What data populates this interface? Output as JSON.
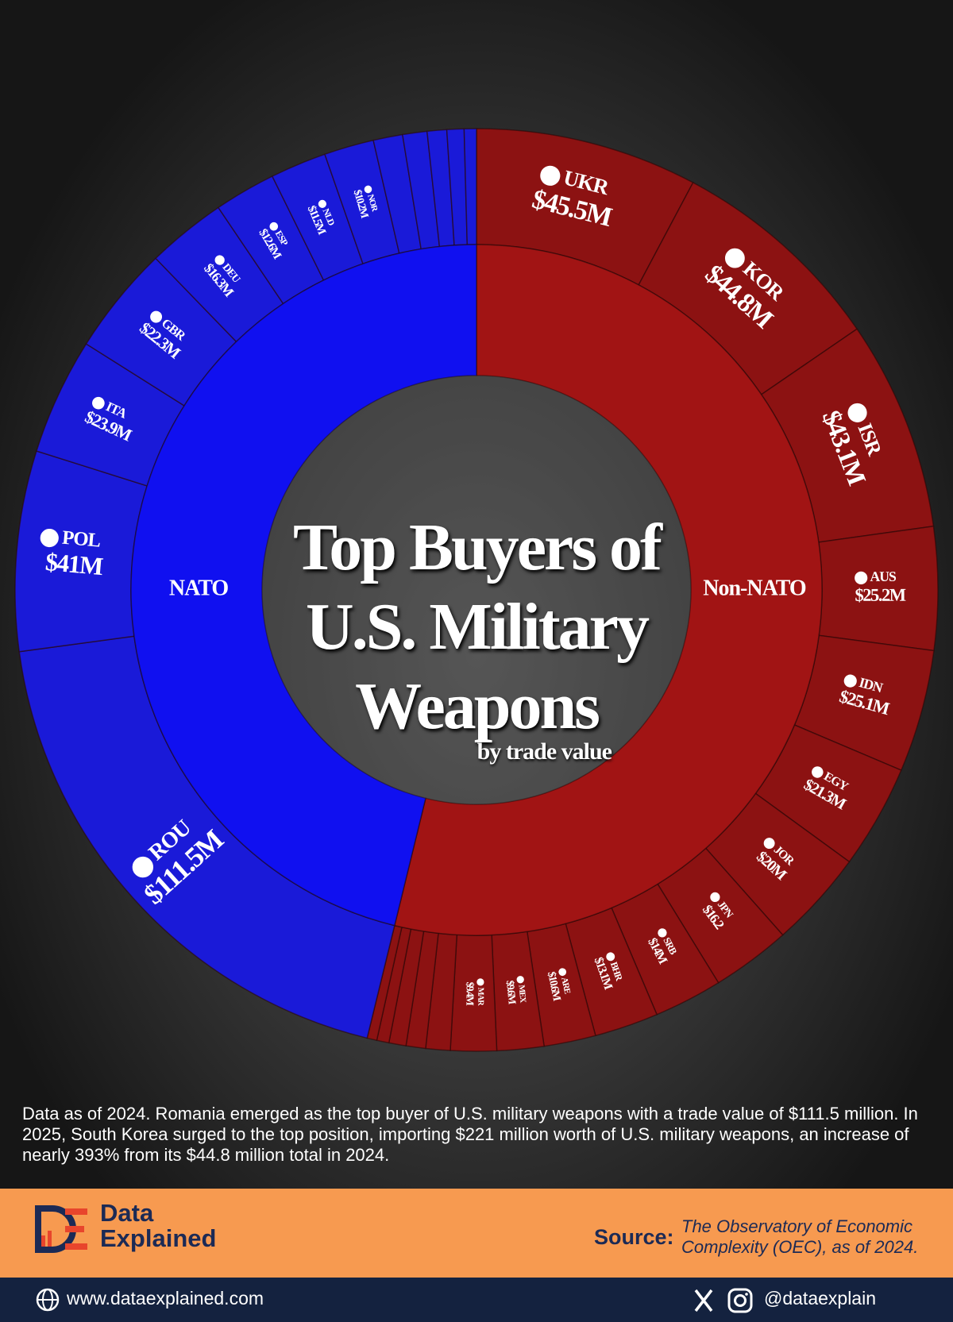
{
  "chart_data": {
    "type": "sunburst",
    "title": [
      "Top Buyers of",
      "U.S. Military",
      "Weapons"
    ],
    "subtitle": "by trade value",
    "series": [
      {
        "name": "Non-NATO",
        "color": "#8c1212",
        "inner_color": "#a11414",
        "categories": [
          "UKR",
          "KOR",
          "ISR",
          "AUS",
          "IDN",
          "EGY",
          "JOR",
          "JPN",
          "SRB",
          "BHR",
          "ARE",
          "MEX",
          "MAR",
          null,
          null,
          null,
          null,
          null
        ],
        "values": [
          45.5,
          44.8,
          43.1,
          25.2,
          25.1,
          21.3,
          20,
          16.2,
          14,
          13.1,
          10.6,
          9.6,
          9.4,
          5,
          4,
          3.5,
          2.5,
          2
        ],
        "value_labels": [
          "$45.5M",
          "$44.8M",
          "$43.1M",
          "$25.2M",
          "$25.1M",
          "$21.3M",
          "$20M",
          "$16.2",
          "$14M",
          "$13.1M",
          "$10.6M",
          "$9.6M",
          "$9.4M",
          null,
          null,
          null,
          null,
          null
        ]
      },
      {
        "name": "NATO",
        "color": "#1a1ad8",
        "inner_color": "#1010f0",
        "categories": [
          "ROU",
          "POL",
          "ITA",
          "GBR",
          "DEU",
          "ESP",
          "NLD",
          "NOR",
          null,
          null,
          null,
          null,
          null
        ],
        "values": [
          111.5,
          41,
          23.9,
          22.3,
          16.3,
          12.6,
          11.5,
          10.2,
          6,
          5,
          4,
          3.5,
          2.5
        ],
        "value_labels": [
          "$111.5M",
          "$41M",
          "$23.9M",
          "$22.3M",
          "$16.3M",
          "$12.6M",
          "$11.5M",
          "$10.2M",
          null,
          null,
          null,
          null,
          null
        ]
      }
    ]
  },
  "note": "Data as of 2024. Romania emerged as the top buyer of U.S. military weapons with a trade value of $111.5 million. In 2025, South Korea surged to the top position, importing $221 million worth of U.S. military weapons, an increase of nearly 393% from its $44.8 million total in 2024.",
  "brand": "Data Explained",
  "source_label": "Source:",
  "source": "The Observatory of Economic Complexity (OEC), as of 2024.",
  "website": "www.dataexplained.com",
  "handle": "@dataexplain"
}
